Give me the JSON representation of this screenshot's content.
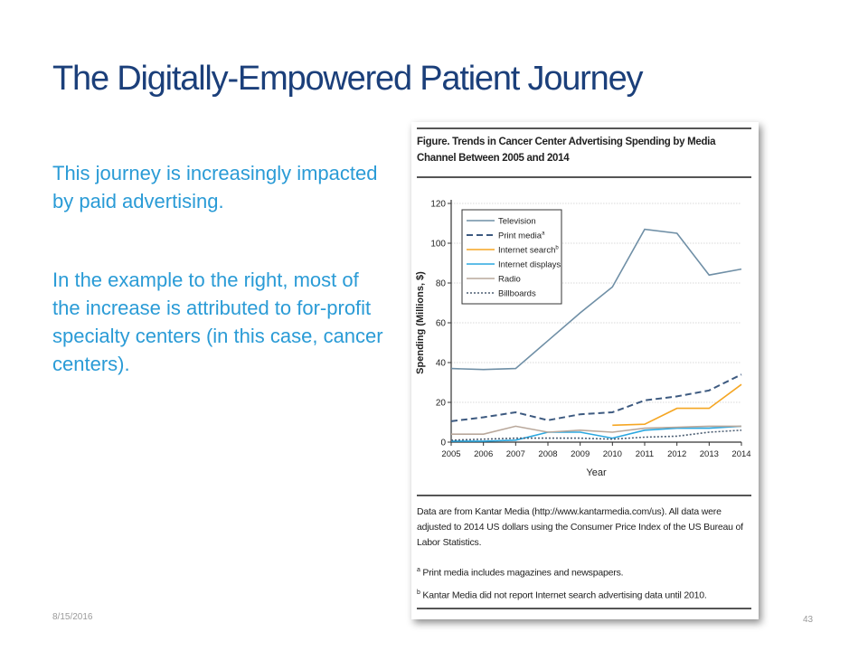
{
  "slide": {
    "title": "The Digitally-Empowered Patient Journey",
    "paragraph1": "This journey is increasingly impacted by paid advertising.",
    "paragraph2": "In the example to the right, most of the increase is attributed to for-profit specialty centers (in this case, cancer centers).",
    "footer_date": "8/15/2016",
    "page_number": "43"
  },
  "figure": {
    "title": "Figure. Trends in Cancer Center Advertising Spending by Media Channel Between 2005 and 2014",
    "note_main": "Data are from Kantar Media (http://www.kantarmedia.com/us). All data were adjusted to 2014 US dollars using the Consumer Price Index of the US Bureau of Labor Statistics.",
    "note_a_mark": "a",
    "note_a": " Print media includes magazines and newspapers.",
    "note_b_mark": "b",
    "note_b": " Kantar Media did not report Internet search advertising data until 2010."
  },
  "chart_data": {
    "type": "line",
    "xlabel": "Year",
    "ylabel": "Spending (Millions, $)",
    "ylim": [
      0,
      120
    ],
    "yticks": [
      0,
      20,
      40,
      60,
      80,
      100,
      120
    ],
    "x": [
      2005,
      2006,
      2007,
      2008,
      2009,
      2010,
      2011,
      2012,
      2013,
      2014
    ],
    "legend_position": "top-left",
    "grid": true,
    "series": [
      {
        "name": "Television",
        "color": "#6f8fa6",
        "dash": "solid",
        "values": [
          37,
          36.5,
          37,
          51,
          65,
          78,
          107,
          105,
          84,
          87
        ]
      },
      {
        "name": "Print media",
        "name_sup": "a",
        "color": "#3d5a80",
        "dash": "long",
        "values": [
          10.5,
          12.5,
          15,
          11,
          14,
          15,
          21,
          23,
          26,
          34
        ]
      },
      {
        "name": "Internet search",
        "name_sup": "b",
        "color": "#f5a623",
        "dash": "solid",
        "values": [
          null,
          null,
          null,
          null,
          null,
          8.5,
          9,
          17,
          17,
          29
        ]
      },
      {
        "name": "Internet displays",
        "color": "#2aa7e0",
        "dash": "solid",
        "values": [
          0.5,
          0.5,
          1,
          5,
          5,
          2,
          6,
          7,
          7,
          8
        ]
      },
      {
        "name": "Radio",
        "color": "#b9a89b",
        "dash": "solid",
        "values": [
          4,
          4,
          8,
          5,
          6,
          5,
          7,
          7.5,
          8,
          8
        ]
      },
      {
        "name": "Billboards",
        "color": "#4b5d72",
        "dash": "dotted",
        "values": [
          1,
          1.5,
          2,
          2,
          2,
          1.5,
          2.5,
          3,
          5,
          6
        ]
      }
    ]
  }
}
